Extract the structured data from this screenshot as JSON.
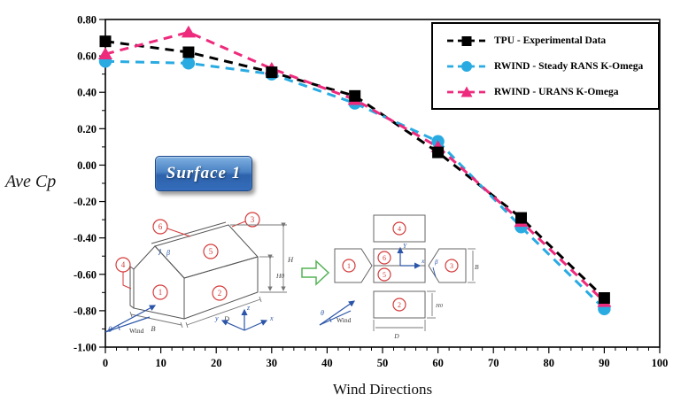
{
  "chart_data": {
    "type": "line",
    "title": "",
    "xlabel": "Wind Directions",
    "ylabel": "Ave Cp",
    "x": [
      0,
      15,
      30,
      45,
      60,
      75,
      90
    ],
    "series": [
      {
        "name": "TPU - Experimental Data",
        "color": "#000000",
        "marker": "square",
        "values": [
          0.68,
          0.62,
          0.51,
          0.38,
          0.07,
          -0.29,
          -0.73
        ]
      },
      {
        "name": "RWIND - Steady RANS K-Omega",
        "color": "#29abe2",
        "marker": "circle",
        "values": [
          0.57,
          0.56,
          0.5,
          0.34,
          0.13,
          -0.34,
          -0.79
        ]
      },
      {
        "name": "RWIND - URANS K-Omega",
        "color": "#ee2a7d",
        "marker": "triangle",
        "values": [
          0.61,
          0.73,
          0.53,
          0.36,
          0.1,
          -0.31,
          -0.75
        ]
      }
    ],
    "xlim": [
      0,
      100
    ],
    "ylim": [
      -1.0,
      0.8
    ],
    "x_major_tick": 10,
    "x_minor_tick": 2,
    "y_major_tick": 0.2,
    "y_minor_tick": 0.1,
    "grid": false,
    "legend_position": "top-right",
    "line_style": "dashed"
  },
  "badge": {
    "label": "Surface 1"
  },
  "inset3d": {
    "s1": "1",
    "s2": "2",
    "s3": "3",
    "s4": "4",
    "s5": "5",
    "s6": "6",
    "B": "B",
    "D": "D",
    "H0": "H0",
    "H": "H",
    "beta": "β",
    "theta": "θ",
    "wind": "Wind",
    "ax_x": "x",
    "ax_y": "y",
    "ax_z": "z"
  },
  "inset2d": {
    "s1": "1",
    "s2": "2",
    "s3": "3",
    "s4": "4",
    "s5": "5",
    "s6": "6",
    "B": "B",
    "D": "D",
    "H0": "H0",
    "beta": "β",
    "theta": "θ",
    "wind": "Wind",
    "ax_x": "x",
    "ax_y": "Y"
  }
}
